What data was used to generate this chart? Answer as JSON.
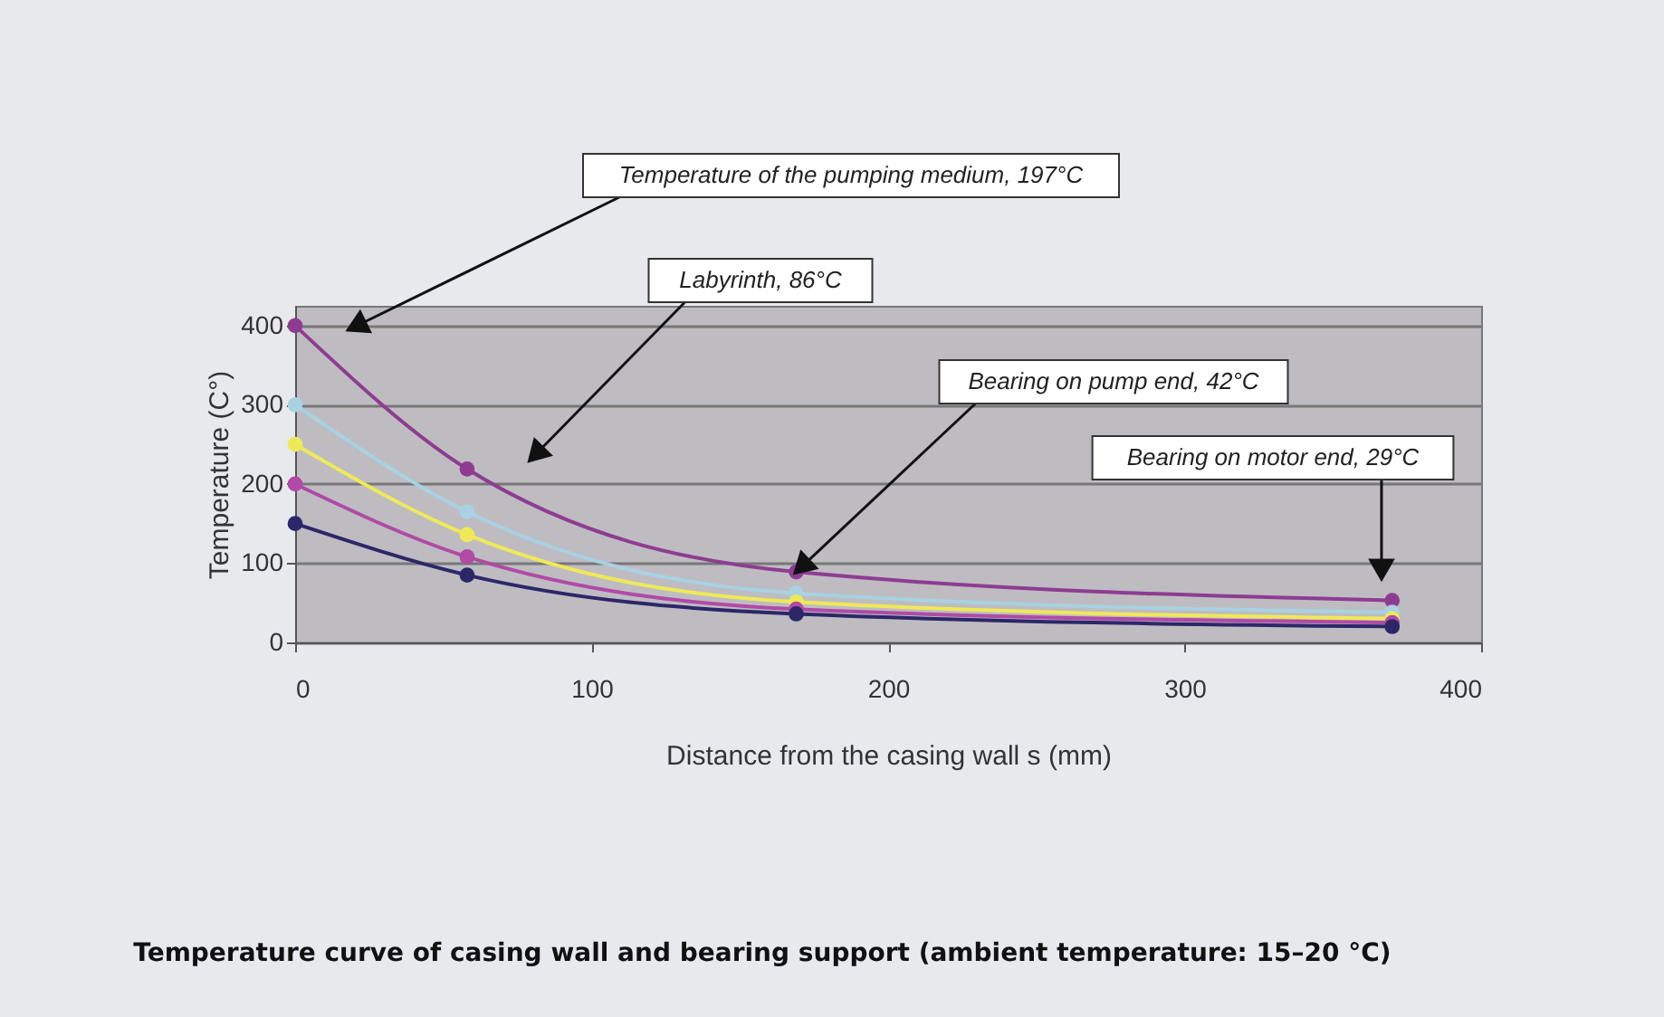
{
  "chart_data": {
    "type": "line",
    "title": "Temperature curve of casing wall and bearing support (ambient temperature: 15–20 °C)",
    "xlabel": "Distance from the casing wall s (mm)",
    "ylabel": "Temperature (C°)",
    "x": [
      0,
      58,
      169,
      370
    ],
    "series": [
      {
        "color": "#8e3c92",
        "values": [
          400,
          219,
          89,
          53
        ]
      },
      {
        "color": "#a8d2e2",
        "values": [
          300,
          165,
          62,
          38
        ]
      },
      {
        "color": "#efe958",
        "values": [
          250,
          136,
          51,
          30
        ]
      },
      {
        "color": "#b04aa6",
        "values": [
          200,
          108,
          42,
          25
        ]
      },
      {
        "color": "#2c2769",
        "values": [
          150,
          85,
          36,
          20
        ]
      }
    ],
    "xlim": [
      0,
      400
    ],
    "xticks": [
      0,
      100,
      200,
      300,
      400
    ],
    "ylim": [
      0,
      425
    ],
    "yticks": [
      0,
      100,
      200,
      300,
      400
    ],
    "grid": "y",
    "marker": "circle",
    "line_style": "solid",
    "annotations": [
      "Temperature of the pumping medium, 197°C",
      "Labyrinth, 86°C",
      {
        "text": "Bearing on pump end, 42°C",
        "x": 169,
        "y": 89
      },
      "Bearing on motor end, 29°C"
    ]
  }
}
